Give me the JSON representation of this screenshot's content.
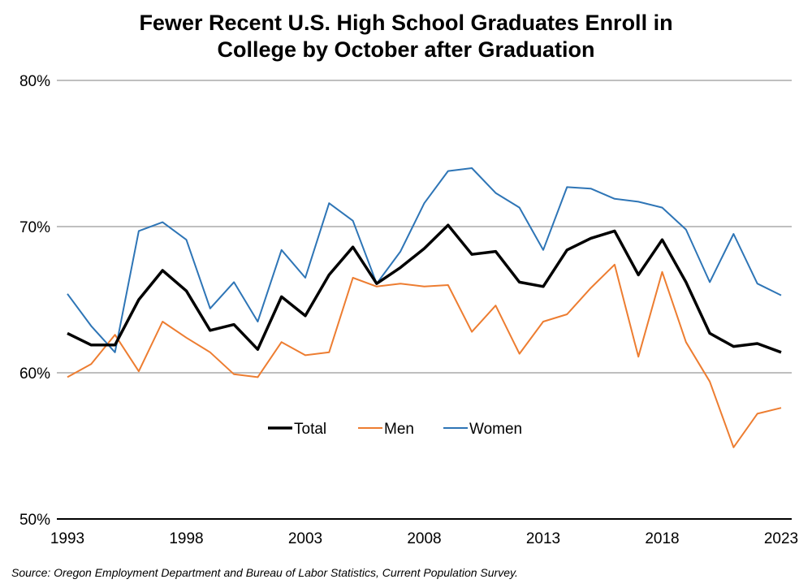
{
  "chart_data": {
    "type": "line",
    "title_line1": "Fewer Recent U.S. High School Graduates Enroll in",
    "title_line2": "College by October after Graduation",
    "xlabel": "",
    "ylabel": "",
    "x": [
      1993,
      1994,
      1995,
      1996,
      1997,
      1998,
      1999,
      2000,
      2001,
      2002,
      2003,
      2004,
      2005,
      2006,
      2007,
      2008,
      2009,
      2010,
      2011,
      2012,
      2013,
      2014,
      2015,
      2016,
      2017,
      2018,
      2019,
      2020,
      2021,
      2022,
      2023
    ],
    "xticks": [
      "1993",
      "1998",
      "2003",
      "2008",
      "2013",
      "2018",
      "2023"
    ],
    "xtick_values": [
      1993,
      1998,
      2003,
      2008,
      2013,
      2018,
      2023
    ],
    "yticks": [
      "50%",
      "60%",
      "70%",
      "80%"
    ],
    "ytick_values": [
      50,
      60,
      70,
      80
    ],
    "ylim": [
      50,
      80
    ],
    "xlim": [
      1993,
      2023
    ],
    "grid": "horizontal",
    "legend_position": "center-left inside",
    "series": [
      {
        "name": "Total",
        "color": "#000000",
        "values": [
          62.7,
          61.9,
          61.9,
          65.0,
          67.0,
          65.6,
          62.9,
          63.3,
          61.6,
          65.2,
          63.9,
          66.7,
          68.6,
          66.1,
          67.2,
          68.5,
          70.1,
          68.1,
          68.3,
          66.2,
          65.9,
          68.4,
          69.2,
          69.7,
          66.7,
          69.1,
          66.2,
          62.7,
          61.8,
          62.0,
          61.4
        ]
      },
      {
        "name": "Men",
        "color": "#ED7D31",
        "values": [
          59.7,
          60.6,
          62.6,
          60.1,
          63.5,
          62.4,
          61.4,
          59.9,
          59.7,
          62.1,
          61.2,
          61.4,
          66.5,
          65.9,
          66.1,
          65.9,
          66.0,
          62.8,
          64.6,
          61.3,
          63.5,
          64.0,
          65.8,
          67.4,
          61.1,
          66.9,
          62.1,
          59.4,
          54.9,
          57.2,
          57.6
        ]
      },
      {
        "name": "Women",
        "color": "#2E75B6",
        "values": [
          65.4,
          63.2,
          61.4,
          69.7,
          70.3,
          69.1,
          64.4,
          66.2,
          63.5,
          68.4,
          66.5,
          71.6,
          70.4,
          66.1,
          68.3,
          71.6,
          73.8,
          74.0,
          72.3,
          71.3,
          68.4,
          72.7,
          72.6,
          71.9,
          71.7,
          71.3,
          69.8,
          66.2,
          69.5,
          66.1,
          65.3
        ]
      }
    ],
    "source": "Source: Oregon Employment Department and Bureau of Labor Statistics, Current Population Survey."
  }
}
